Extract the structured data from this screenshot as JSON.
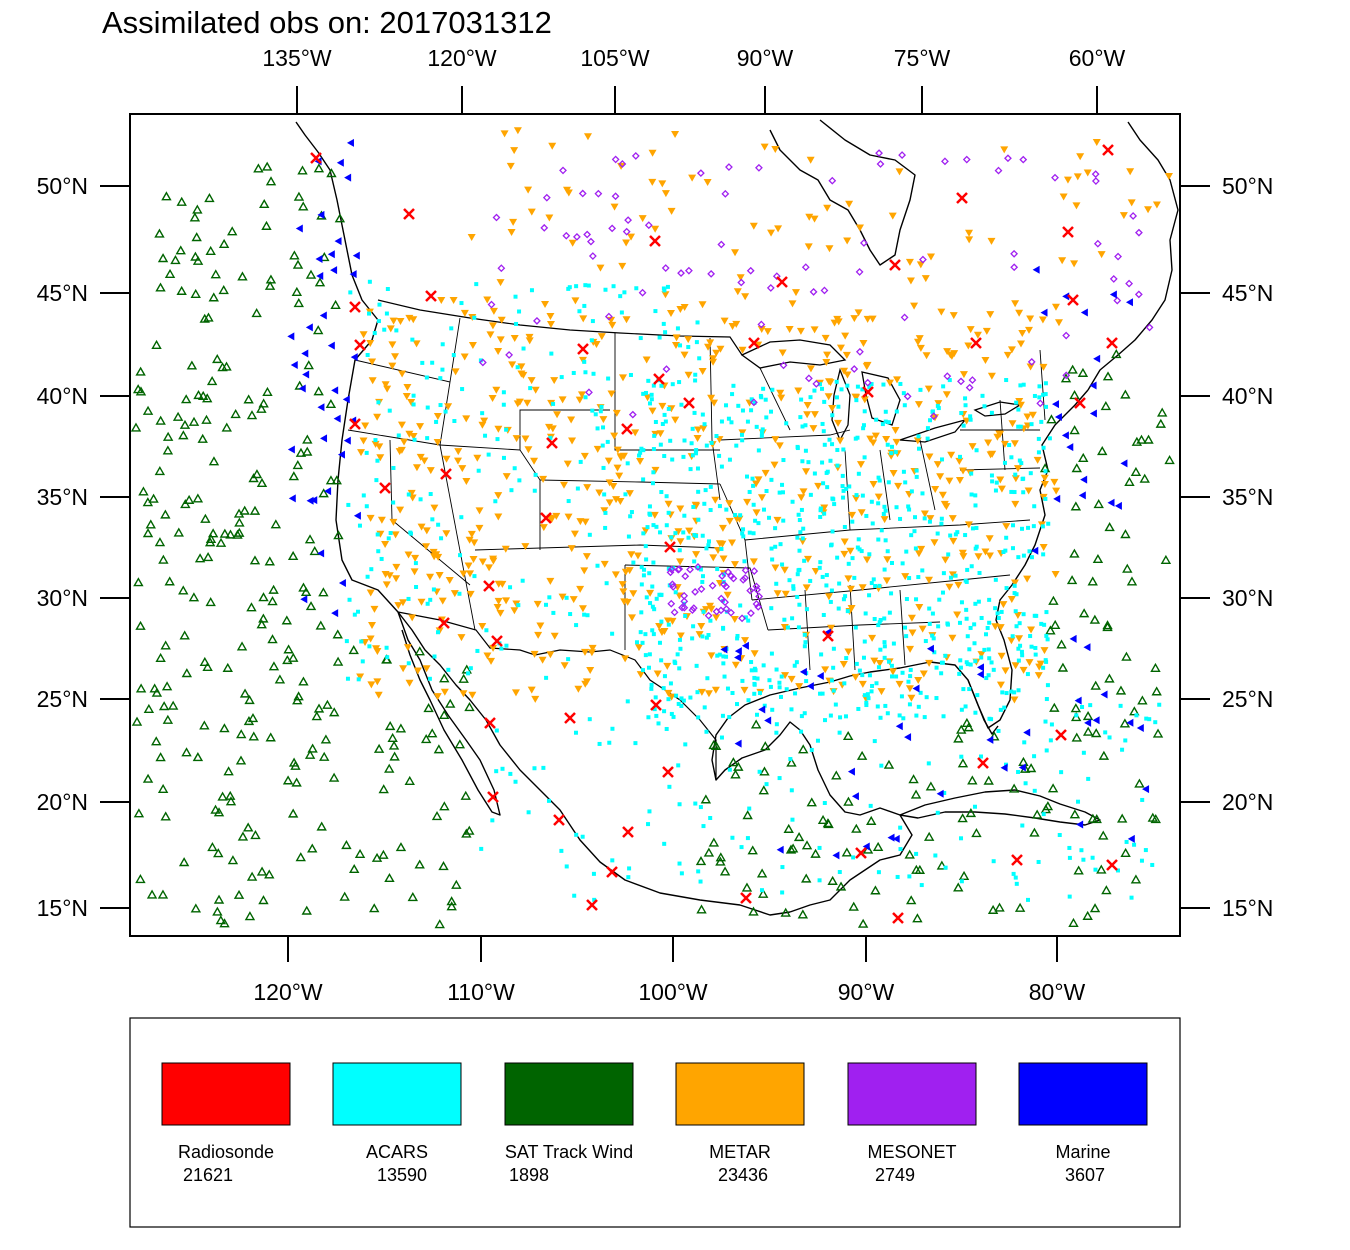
{
  "title": "Assimilated obs on: 2017031312",
  "axes": {
    "top_lon_labels": [
      "135°W",
      "120°W",
      "105°W",
      "90°W",
      "75°W",
      "60°W"
    ],
    "bottom_lon_labels": [
      "120°W",
      "110°W",
      "100°W",
      "90°W",
      "80°W"
    ],
    "lat_labels": [
      "50°N",
      "45°N",
      "40°N",
      "35°N",
      "30°N",
      "25°N",
      "20°N",
      "15°N"
    ]
  },
  "legend": [
    {
      "name": "Radiosonde",
      "count": "21621",
      "color": "#ff0000",
      "marker": "x-cross-icon"
    },
    {
      "name": "ACARS",
      "count": "13590",
      "color": "#00ffff",
      "marker": "square-dot-icon"
    },
    {
      "name": "SAT Track Wind",
      "count": "1898",
      "color": "#006400",
      "marker": "triangle-up-icon"
    },
    {
      "name": "METAR",
      "count": "23436",
      "color": "#ffa500",
      "marker": "triangle-down-icon"
    },
    {
      "name": "MESONET",
      "count": "2749",
      "color": "#a020f0",
      "marker": "diamond-icon"
    },
    {
      "name": "Marine",
      "count": "3607",
      "color": "#0000ff",
      "marker": "triangle-left-icon"
    }
  ]
}
